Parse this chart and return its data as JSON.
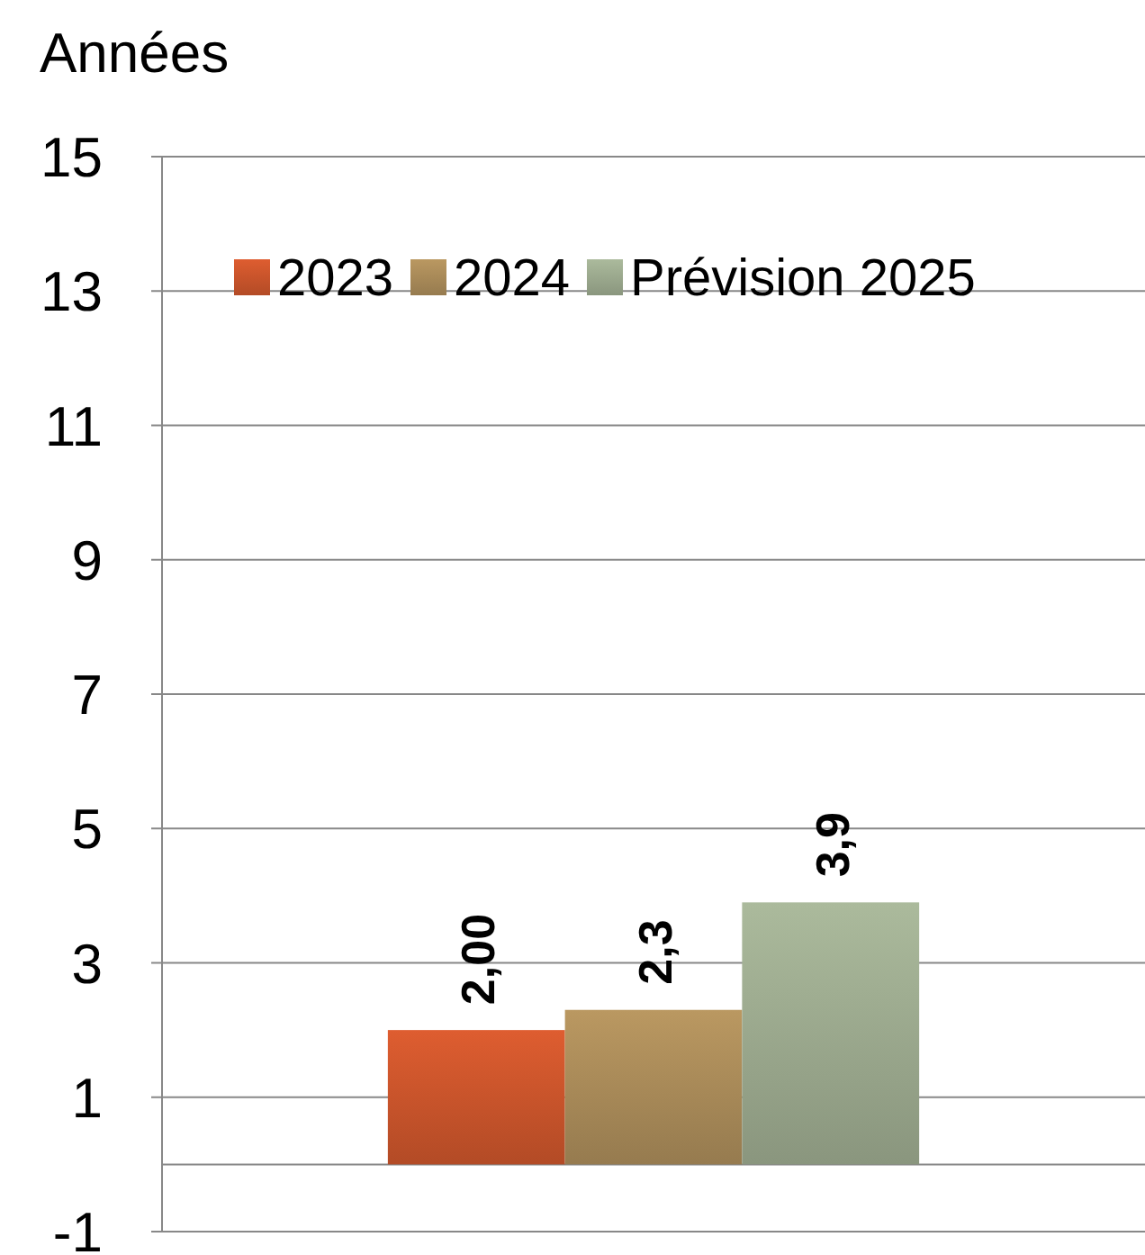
{
  "chart_data": {
    "type": "bar",
    "ylabel": "Années",
    "categories": [
      null
    ],
    "series": [
      {
        "name": "2023",
        "color": "#c4522a",
        "values": [
          2.0
        ],
        "value_labels": [
          "2,00"
        ]
      },
      {
        "name": "2024",
        "color": "#a48656",
        "values": [
          2.3
        ],
        "value_labels": [
          "2,3"
        ]
      },
      {
        "name": "Prévision 2025",
        "color": "#97a48a",
        "values": [
          3.9
        ],
        "value_labels": [
          "3,9"
        ]
      }
    ],
    "ylim": [
      -1,
      15
    ],
    "yticks": [
      -1,
      1,
      3,
      5,
      7,
      9,
      11,
      13,
      15
    ],
    "grid": "y",
    "legend": "top"
  }
}
